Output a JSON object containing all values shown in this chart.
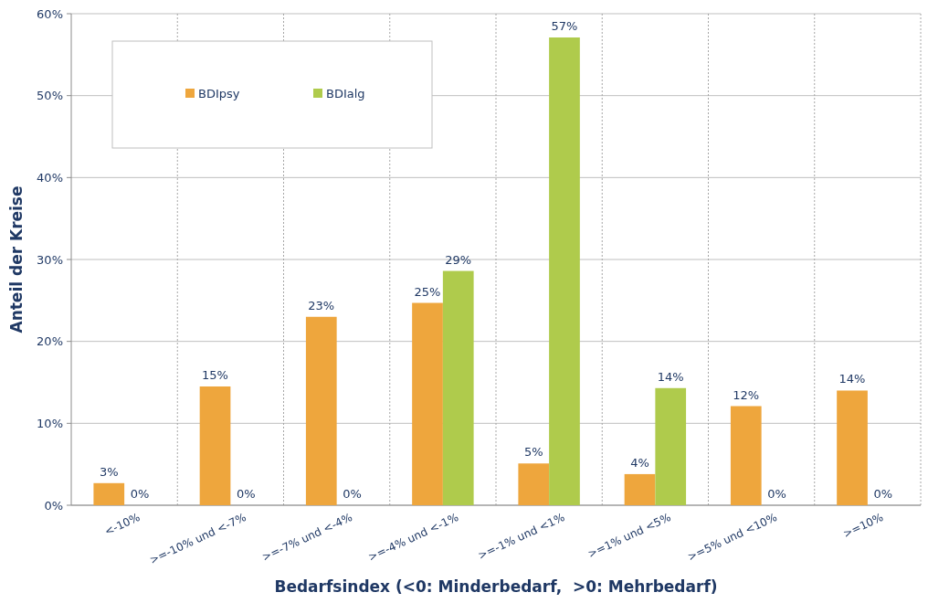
{
  "chart_data": {
    "type": "bar",
    "xlabel": "Bedarfsindex (<0: Minderbedarf,  >0: Mehrbedarf)",
    "ylabel": "Anteil der Kreise",
    "categories": [
      "<-10%",
      ">=-10% und <-7%",
      ">=-7% und <-4%",
      ">=-4% und <-1%",
      ">=-1% und <1%",
      ">=1% und <5%",
      ">=5% und <10%",
      ">=10%"
    ],
    "series": [
      {
        "name": "BDIpsy",
        "color": "#eea63d",
        "values": [
          2.7,
          14.5,
          23,
          24.7,
          5.1,
          3.8,
          12.1,
          14
        ],
        "value_labels": [
          "3%",
          "15%",
          "23%",
          "25%",
          "5%",
          "4%",
          "12%",
          "14%"
        ]
      },
      {
        "name": "BDIalg",
        "color": "#afcb4c",
        "values": [
          0,
          0,
          0,
          28.6,
          57.1,
          14.3,
          0,
          0
        ],
        "value_labels": [
          "0%",
          "0%",
          "0%",
          "29%",
          "57%",
          "14%",
          "0%",
          "0%"
        ]
      }
    ],
    "ylim": [
      0,
      60
    ],
    "yticks": [
      {
        "value": 0,
        "label": "0%"
      },
      {
        "value": 10,
        "label": "10%"
      },
      {
        "value": 20,
        "label": "20%"
      },
      {
        "value": 30,
        "label": "30%"
      },
      {
        "value": 40,
        "label": "40%"
      },
      {
        "value": 50,
        "label": "50%"
      },
      {
        "value": 60,
        "label": "60%"
      }
    ],
    "grid": true,
    "legend": "top left"
  }
}
